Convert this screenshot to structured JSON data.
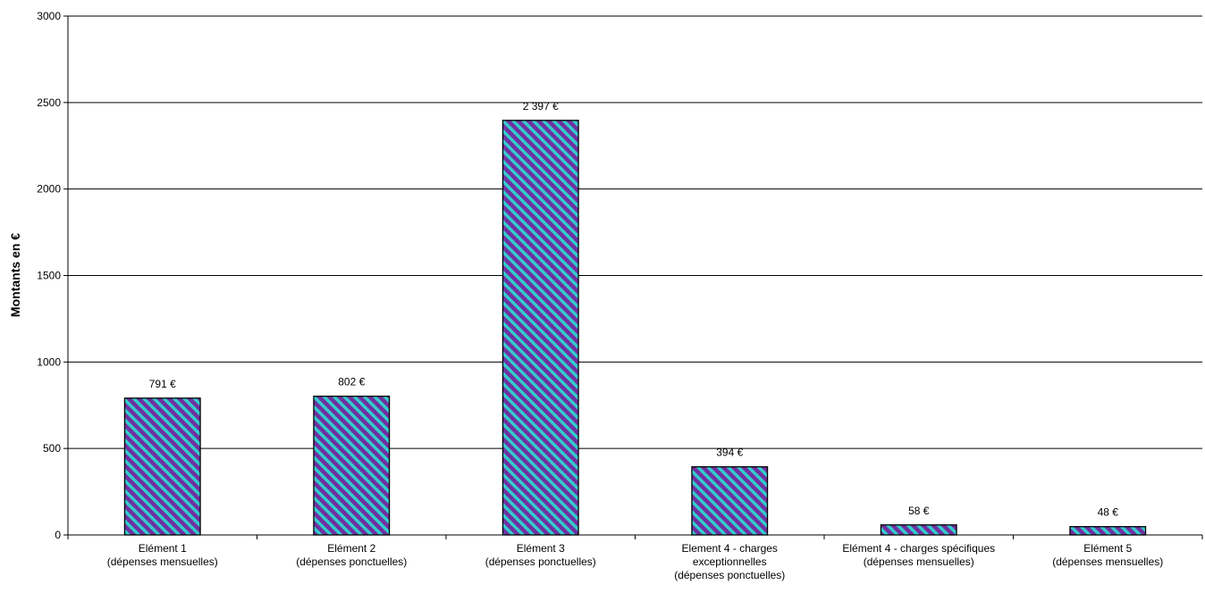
{
  "chart_data": {
    "type": "bar",
    "title": "",
    "xlabel": "",
    "ylabel": "Montants en €",
    "ylim": [
      0,
      3000
    ],
    "yticks": [
      0,
      500,
      1000,
      1500,
      2000,
      2500,
      3000
    ],
    "grid": true,
    "legend": "none",
    "categories": [
      [
        "Elément 1",
        "(dépenses mensuelles)"
      ],
      [
        "Elément 2",
        "(dépenses ponctuelles)"
      ],
      [
        "Elément 3",
        "(dépenses ponctuelles)"
      ],
      [
        "Element 4 - charges",
        "exceptionnelles",
        "(dépenses ponctuelles)"
      ],
      [
        "Elément 4 - charges spécifiques",
        "(dépenses mensuelles)"
      ],
      [
        "Elément 5",
        "(dépenses mensuelles)"
      ]
    ],
    "values": [
      791,
      802,
      2397,
      394,
      58,
      48
    ],
    "data_labels": [
      "791 €",
      "802 €",
      "2 397 €",
      "394 €",
      "58 €",
      "48 €"
    ],
    "colors": {
      "bar_stripe_a": "#7030A0",
      "bar_stripe_b": "#33CCCC",
      "bar_border": "#000000",
      "grid": "#000000"
    }
  }
}
